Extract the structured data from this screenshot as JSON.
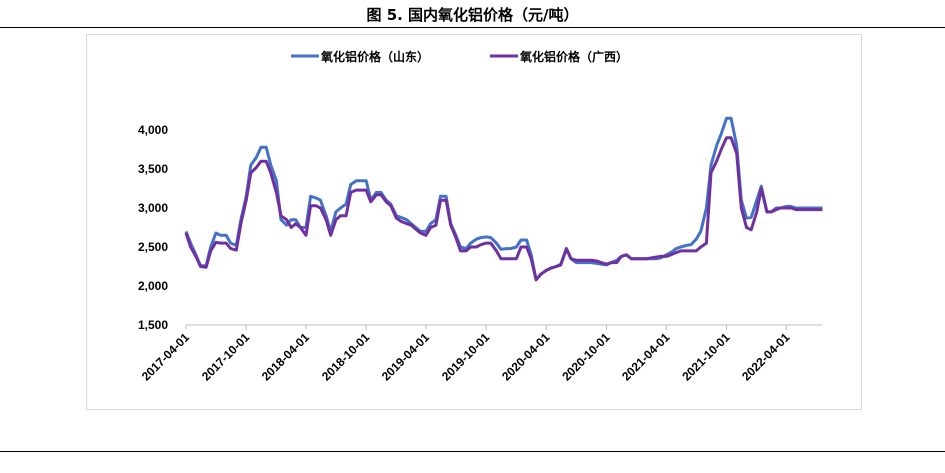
{
  "title": "图 5. 国内氧化铝价格（元/吨）",
  "chart_data": {
    "type": "line",
    "title": "图 5. 国内氧化铝价格（元/吨）",
    "xlabel": "",
    "ylabel": "",
    "ylim": [
      1500,
      4000
    ],
    "yticks": [
      "1,500",
      "2,000",
      "2,500",
      "3,000",
      "3,500",
      "4,000"
    ],
    "ytick_values": [
      1500,
      2000,
      2500,
      3000,
      3500,
      4000
    ],
    "xticks": [
      "2017-04-01",
      "2017-10-01",
      "2018-04-01",
      "2018-10-01",
      "2019-04-01",
      "2019-10-01",
      "2020-04-01",
      "2020-10-01",
      "2021-04-01",
      "2021-10-01",
      "2022-04-01"
    ],
    "xlim": [
      "2017-04-01",
      "2022-07-20"
    ],
    "grid": false,
    "legend_position": "top",
    "x": [
      "2017-04-01",
      "2017-04-15",
      "2017-05-01",
      "2017-05-15",
      "2017-06-01",
      "2017-06-15",
      "2017-07-01",
      "2017-07-15",
      "2017-08-01",
      "2017-08-15",
      "2017-09-01",
      "2017-09-15",
      "2017-10-01",
      "2017-10-15",
      "2017-11-01",
      "2017-11-15",
      "2017-12-01",
      "2017-12-15",
      "2018-01-01",
      "2018-01-15",
      "2018-02-01",
      "2018-02-15",
      "2018-03-01",
      "2018-03-15",
      "2018-04-01",
      "2018-04-15",
      "2018-05-01",
      "2018-05-15",
      "2018-06-01",
      "2018-06-15",
      "2018-07-01",
      "2018-07-15",
      "2018-08-01",
      "2018-08-15",
      "2018-09-01",
      "2018-09-15",
      "2018-10-01",
      "2018-10-15",
      "2018-11-01",
      "2018-11-15",
      "2018-12-01",
      "2018-12-15",
      "2019-01-01",
      "2019-01-15",
      "2019-02-01",
      "2019-02-15",
      "2019-03-01",
      "2019-03-15",
      "2019-04-01",
      "2019-04-15",
      "2019-05-01",
      "2019-05-15",
      "2019-06-01",
      "2019-06-15",
      "2019-07-01",
      "2019-07-15",
      "2019-08-01",
      "2019-08-15",
      "2019-09-01",
      "2019-09-15",
      "2019-10-01",
      "2019-10-15",
      "2019-11-01",
      "2019-11-15",
      "2019-12-01",
      "2019-12-15",
      "2020-01-01",
      "2020-01-15",
      "2020-02-01",
      "2020-02-15",
      "2020-03-01",
      "2020-03-15",
      "2020-04-01",
      "2020-04-15",
      "2020-05-01",
      "2020-05-15",
      "2020-06-01",
      "2020-06-15",
      "2020-07-01",
      "2020-07-15",
      "2020-08-01",
      "2020-08-15",
      "2020-09-01",
      "2020-09-15",
      "2020-10-01",
      "2020-10-15",
      "2020-11-01",
      "2020-11-15",
      "2020-12-01",
      "2020-12-15",
      "2021-01-01",
      "2021-01-15",
      "2021-02-01",
      "2021-02-15",
      "2021-03-01",
      "2021-03-15",
      "2021-04-01",
      "2021-04-15",
      "2021-05-01",
      "2021-05-15",
      "2021-06-01",
      "2021-06-15",
      "2021-07-01",
      "2021-07-15",
      "2021-08-01",
      "2021-08-15",
      "2021-09-01",
      "2021-09-15",
      "2021-10-01",
      "2021-10-15",
      "2021-11-01",
      "2021-11-15",
      "2021-12-01",
      "2021-12-15",
      "2022-01-01",
      "2022-01-15",
      "2022-02-01",
      "2022-02-15",
      "2022-03-01",
      "2022-03-15",
      "2022-04-01",
      "2022-04-15",
      "2022-05-01",
      "2022-05-15",
      "2022-06-01",
      "2022-06-15",
      "2022-07-01",
      "2022-07-15"
    ],
    "series": [
      {
        "name": "氧化铝价格（山东）",
        "color": "#4472C4",
        "values": [
          2700,
          2550,
          2400,
          2260,
          2260,
          2500,
          2680,
          2650,
          2650,
          2550,
          2520,
          2850,
          3150,
          3550,
          3650,
          3780,
          3780,
          3550,
          3350,
          2850,
          2780,
          2850,
          2850,
          2750,
          2750,
          3150,
          3130,
          3100,
          2900,
          2700,
          2950,
          3000,
          3050,
          3300,
          3350,
          3350,
          3350,
          3100,
          3200,
          3200,
          3100,
          3050,
          2900,
          2880,
          2850,
          2800,
          2750,
          2700,
          2700,
          2800,
          2850,
          3150,
          3150,
          2800,
          2650,
          2500,
          2480,
          2550,
          2600,
          2620,
          2630,
          2620,
          2550,
          2470,
          2480,
          2480,
          2500,
          2590,
          2590,
          2400,
          2080,
          2150,
          2200,
          2230,
          2250,
          2280,
          2480,
          2350,
          2300,
          2300,
          2300,
          2300,
          2290,
          2280,
          2270,
          2300,
          2330,
          2380,
          2400,
          2350,
          2350,
          2350,
          2350,
          2350,
          2350,
          2360,
          2400,
          2430,
          2480,
          2500,
          2520,
          2530,
          2600,
          2700,
          3000,
          3550,
          3800,
          3950,
          4150,
          4150,
          3800,
          3100,
          2870,
          2880,
          3100,
          3280,
          2950,
          2950,
          3000,
          3000,
          3020,
          3020,
          3000,
          3000,
          3000,
          3000,
          3000,
          3000
        ]
      },
      {
        "name": "氧化铝价格（广西）",
        "color": "#7030A0",
        "values": [
          2680,
          2500,
          2380,
          2250,
          2240,
          2450,
          2560,
          2550,
          2550,
          2480,
          2460,
          2800,
          3100,
          3450,
          3520,
          3600,
          3600,
          3450,
          3200,
          2900,
          2850,
          2750,
          2800,
          2750,
          2650,
          3030,
          3030,
          3000,
          2850,
          2650,
          2850,
          2900,
          2900,
          3200,
          3230,
          3230,
          3230,
          3080,
          3170,
          3170,
          3080,
          3030,
          2870,
          2830,
          2800,
          2780,
          2730,
          2680,
          2650,
          2750,
          2780,
          3100,
          3100,
          2780,
          2620,
          2450,
          2450,
          2500,
          2500,
          2530,
          2550,
          2550,
          2450,
          2350,
          2350,
          2350,
          2350,
          2500,
          2500,
          2350,
          2080,
          2150,
          2200,
          2230,
          2250,
          2270,
          2480,
          2350,
          2330,
          2330,
          2330,
          2330,
          2320,
          2300,
          2280,
          2300,
          2300,
          2380,
          2400,
          2350,
          2350,
          2350,
          2350,
          2360,
          2370,
          2380,
          2380,
          2400,
          2430,
          2450,
          2450,
          2450,
          2450,
          2500,
          2550,
          3450,
          3600,
          3750,
          3900,
          3900,
          3700,
          3000,
          2750,
          2720,
          2950,
          3250,
          2950,
          2950,
          2980,
          3000,
          3000,
          3000,
          2980,
          2980,
          2980,
          2980,
          2980,
          2980
        ]
      }
    ]
  }
}
